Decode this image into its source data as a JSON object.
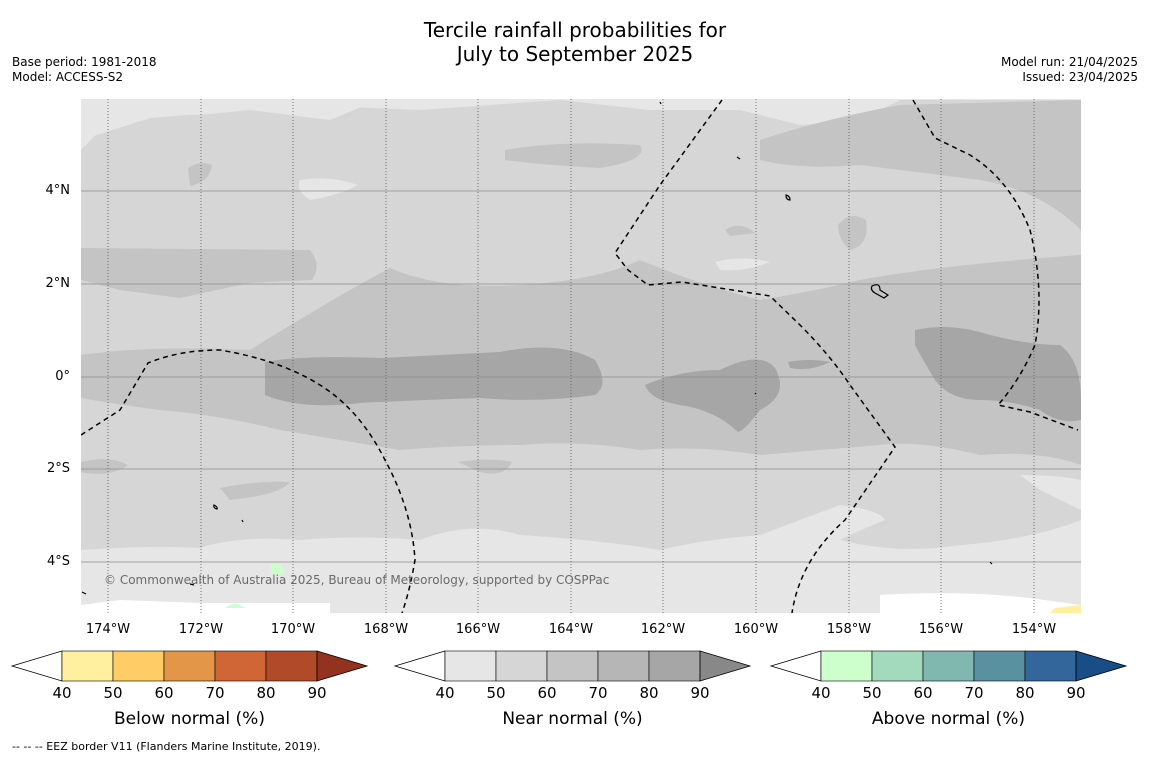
{
  "title_line1": "Tercile rainfall probabilities for",
  "title_line2": "July to September 2025",
  "base_period": "Base period: 1981-2018",
  "model": "Model: ACCESS-S2",
  "model_run": "Model run: 21/04/2025",
  "issued": "Issued: 23/04/2025",
  "copyright": "© Commonwealth of Australia 2025, Bureau of Meteorology, supported by COSPPac",
  "footnote": "--  --  -- EEZ border V11 (Flanders Marine Institute, 2019).",
  "lat_labels": [
    "4°N",
    "2°N",
    "0°",
    "2°S",
    "4°S"
  ],
  "lon_labels": [
    "174°W",
    "172°W",
    "170°W",
    "168°W",
    "166°W",
    "164°W",
    "162°W",
    "160°W",
    "158°W",
    "156°W",
    "154°W"
  ],
  "colorbars": [
    {
      "title": "Below normal (%)",
      "ticks": [
        "40",
        "50",
        "60",
        "70",
        "80",
        "90"
      ],
      "colors": [
        "#ffffff",
        "#fff0a0",
        "#ffcc66",
        "#e39647",
        "#d06535",
        "#b14a28",
        "#93321e"
      ]
    },
    {
      "title": "Near normal (%)",
      "ticks": [
        "40",
        "50",
        "60",
        "70",
        "80",
        "90"
      ],
      "colors": [
        "#ffffff",
        "#e6e6e6",
        "#d6d6d6",
        "#c4c4c4",
        "#b6b6b6",
        "#a6a6a6",
        "#888888"
      ]
    },
    {
      "title": "Above normal (%)",
      "ticks": [
        "40",
        "50",
        "60",
        "70",
        "80",
        "90"
      ],
      "colors": [
        "#ffffff",
        "#ccffcc",
        "#a3d9bd",
        "#80b8b0",
        "#5a91a0",
        "#33669a",
        "#194d85"
      ]
    }
  ]
}
